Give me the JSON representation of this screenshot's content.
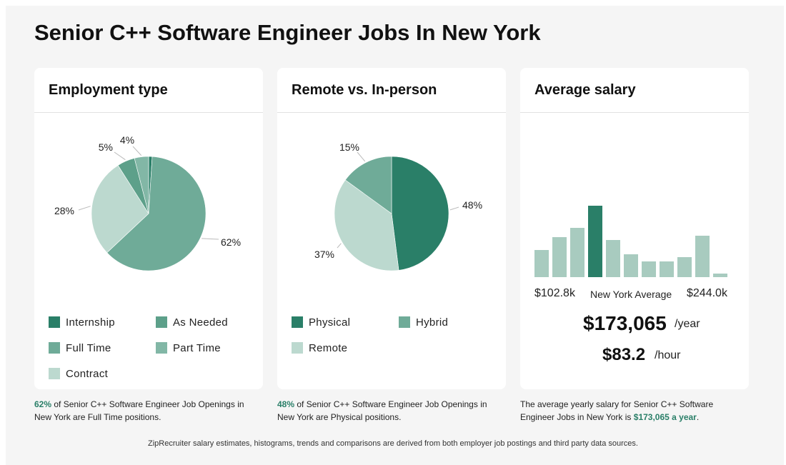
{
  "page": {
    "title": "Senior C++ Software Engineer Jobs In New York",
    "footnote": "ZipRecruiter salary estimates, histograms, trends and comparisons are derived from both employer job postings and third party data sources."
  },
  "colors": {
    "dark": "#2a7f68",
    "medium": "#5da08a",
    "light": "#6fab98",
    "lighter": "#82b7a6",
    "pale": "#bcd9cf",
    "bar": "#a8cbbf"
  },
  "employment": {
    "heading": "Employment type",
    "caption_pct": "62%",
    "caption_text": " of Senior C++ Software Engineer Job Openings in New York are Full Time positions.",
    "legend": [
      {
        "label": "Internship"
      },
      {
        "label": "As Needed"
      },
      {
        "label": "Full Time"
      },
      {
        "label": "Part Time"
      },
      {
        "label": "Contract"
      }
    ]
  },
  "remote": {
    "heading": "Remote vs. In-person",
    "caption_pct": "48%",
    "caption_text": " of Senior C++ Software Engineer Job Openings in New York are Physical positions.",
    "legend": [
      {
        "label": "Physical"
      },
      {
        "label": "Hybrid"
      },
      {
        "label": "Remote"
      }
    ]
  },
  "salary": {
    "heading": "Average salary",
    "min_label": "$102.8k",
    "avg_label": "New York Average",
    "max_label": "$244.0k",
    "yearly": "$173,065",
    "yearly_unit": "/year",
    "hourly": "$83.2",
    "hourly_unit": "/hour",
    "caption_text": "The average yearly salary for Senior C++ Software Engineer Jobs in New York is ",
    "caption_amount": "$173,065 a year",
    "caption_end": "."
  },
  "chart_data": [
    {
      "type": "pie",
      "slices": [
        {
          "name": "Internship",
          "value": 1,
          "label": "",
          "color": "#2a7f68"
        },
        {
          "name": "Full Time",
          "value": 62,
          "label": "62%",
          "color": "#6fab98"
        },
        {
          "name": "Contract",
          "value": 28,
          "label": "28%",
          "color": "#bcd9cf"
        },
        {
          "name": "As Needed",
          "value": 5,
          "label": "5%",
          "color": "#5da08a"
        },
        {
          "name": "Part Time",
          "value": 4,
          "label": "4%",
          "color": "#82b7a6"
        }
      ]
    },
    {
      "type": "pie",
      "slices": [
        {
          "name": "Physical",
          "value": 48,
          "label": "48%",
          "color": "#2a7f68"
        },
        {
          "name": "Remote",
          "value": 37,
          "label": "37%",
          "color": "#bcd9cf"
        },
        {
          "name": "Hybrid",
          "value": 15,
          "label": "15%",
          "color": "#6fab98"
        }
      ]
    },
    {
      "type": "bar",
      "categories": [
        "1",
        "2",
        "3",
        "4",
        "5",
        "6",
        "7",
        "8",
        "9",
        "10",
        "11"
      ],
      "values": [
        38,
        56,
        69,
        100,
        52,
        32,
        22,
        22,
        28,
        58,
        5
      ],
      "highlight_index": 3,
      "ylim": [
        0,
        100
      ]
    }
  ]
}
